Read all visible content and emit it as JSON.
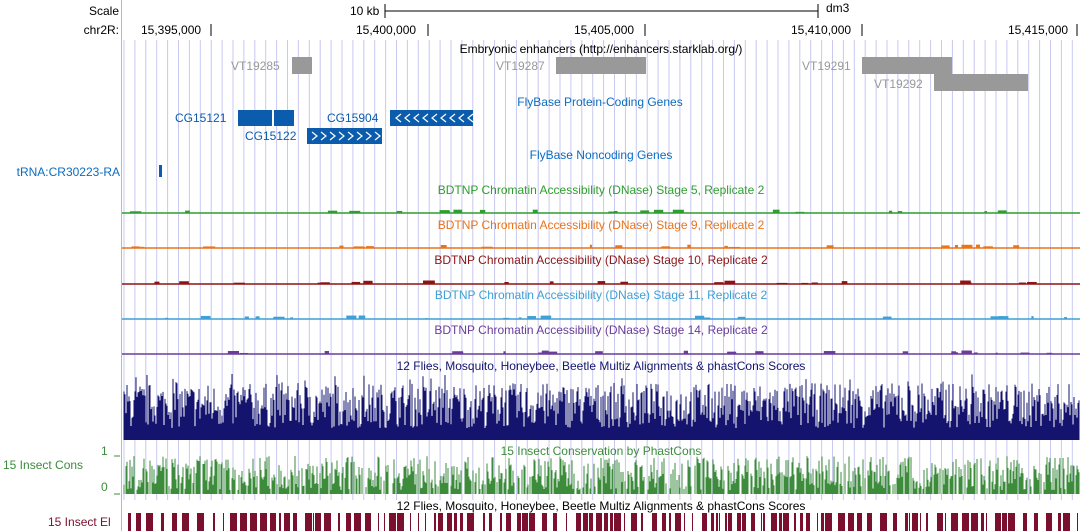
{
  "header": {
    "scale_label": "Scale",
    "chrom_label": "chr2R:",
    "scale_bar_text": "10 kb",
    "assembly": "dm3",
    "positions": [
      "15,395,000",
      "15,400,000",
      "15,405,000",
      "15,410,000",
      "15,415,000"
    ]
  },
  "tracks": {
    "enhancers": {
      "title": "Embryonic enhancers (http://enhancers.starklab.org/)",
      "items": [
        "VT19285",
        "VT19287",
        "VT19291",
        "VT19292"
      ]
    },
    "protein_genes": {
      "title": "FlyBase Protein-Coding Genes",
      "items": [
        "CG15121",
        "CG15122",
        "CG15904"
      ]
    },
    "noncoding": {
      "title": "FlyBase Noncoding Genes",
      "items": [
        "tRNA:CR30223-RA"
      ]
    },
    "dnase": [
      {
        "title": "BDTNP Chromatin Accessibility (DNase) Stage 5, Replicate 2",
        "color": "#2e9e2e"
      },
      {
        "title": "BDTNP Chromatin Accessibility (DNase) Stage 9, Replicate 2",
        "color": "#e8741c"
      },
      {
        "title": "BDTNP Chromatin Accessibility (DNase) Stage 10, Replicate 2",
        "color": "#8c1414"
      },
      {
        "title": "BDTNP Chromatin Accessibility (DNase) Stage 11, Replicate 2",
        "color": "#3ea0d6"
      },
      {
        "title": "BDTNP Chromatin Accessibility (DNase) Stage 14, Replicate 2",
        "color": "#6a3d9a"
      }
    ],
    "multiz": {
      "title": "12 Flies, Mosquito, Honeybee, Beetle Multiz Alignments & phastCons Scores",
      "color": "#14146e"
    },
    "phastcons": {
      "title": "15 Insect Conservation by PhastCons",
      "side_label": "15 Insect Cons",
      "axis_top": "1",
      "axis_bottom": "0",
      "color": "#3c8c3c"
    },
    "elements": {
      "title": "12 Flies, Mosquito, Honeybee, Beetle Multiz Alignments & phastCons Scores",
      "side_label": "15 Insect El",
      "color": "#7a0f2e"
    }
  },
  "colors": {
    "gene": "#0b5cad",
    "enhancer": "#999999",
    "grid": "#c8c8f0",
    "side_divider": "#f2a0a0"
  }
}
